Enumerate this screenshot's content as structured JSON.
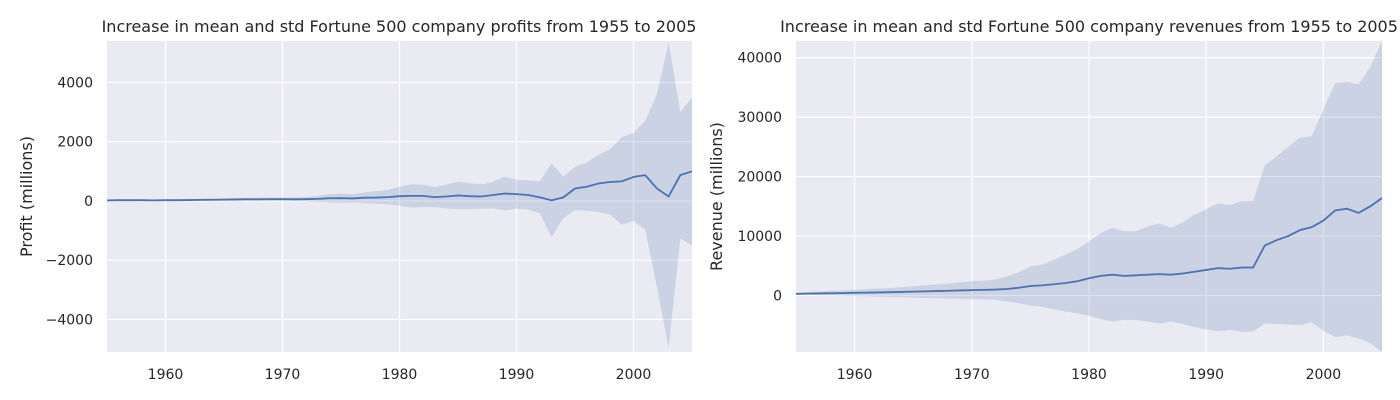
{
  "colors": {
    "panel_background": "#eaeaf2",
    "series": "#4c72b0",
    "gridline": "#ffffff",
    "text": "#262626"
  },
  "chart_data": [
    {
      "type": "line",
      "title": "Increase in mean and std Fortune 500 company profits from 1955 to 2005",
      "xlabel": "",
      "ylabel": "Profit (millions)",
      "xlim": [
        1955,
        2005
      ],
      "ylim": [
        -5100,
        5400
      ],
      "xticks": [
        1960,
        1970,
        1980,
        1990,
        2000
      ],
      "xtick_labels": [
        "1960",
        "1970",
        "1980",
        "1990",
        "2000"
      ],
      "yticks": [
        -4000,
        -2000,
        0,
        2000,
        4000
      ],
      "ytick_labels": [
        "−4000",
        "−2000",
        "0",
        "2000",
        "4000"
      ],
      "grid": true,
      "series": [
        {
          "x": [
            1955,
            1956,
            1957,
            1958,
            1959,
            1960,
            1961,
            1962,
            1963,
            1964,
            1965,
            1966,
            1967,
            1968,
            1969,
            1970,
            1971,
            1972,
            1973,
            1974,
            1975,
            1976,
            1977,
            1978,
            1979,
            1980,
            1981,
            1982,
            1983,
            1984,
            1985,
            1986,
            1987,
            1988,
            1989,
            1990,
            1991,
            1992,
            1993,
            1994,
            1995,
            1996,
            1997,
            1998,
            1999,
            2000,
            2001,
            2002,
            2003,
            2004,
            2005
          ],
          "mean": [
            20,
            25,
            25,
            25,
            20,
            25,
            25,
            30,
            35,
            40,
            45,
            50,
            55,
            55,
            60,
            60,
            55,
            60,
            70,
            90,
            95,
            85,
            110,
            115,
            130,
            160,
            170,
            170,
            130,
            150,
            185,
            160,
            150,
            200,
            250,
            230,
            200,
            120,
            20,
            120,
            420,
            480,
            590,
            640,
            660,
            810,
            870,
            420,
            150,
            870,
            1000
          ],
          "upper": [
            50,
            55,
            55,
            50,
            45,
            55,
            55,
            60,
            70,
            80,
            90,
            100,
            105,
            105,
            115,
            115,
            110,
            130,
            170,
            230,
            250,
            220,
            290,
            330,
            370,
            480,
            560,
            550,
            470,
            550,
            650,
            600,
            560,
            650,
            820,
            720,
            690,
            660,
            1270,
            820,
            1150,
            1300,
            1550,
            1750,
            2150,
            2300,
            2700,
            3600,
            5350,
            3000,
            3500
          ],
          "lower": [
            -10,
            -5,
            -5,
            0,
            -5,
            -5,
            -5,
            0,
            0,
            0,
            0,
            0,
            5,
            5,
            5,
            5,
            0,
            -10,
            -30,
            -50,
            -60,
            -50,
            -70,
            -100,
            -110,
            -160,
            -220,
            -210,
            -210,
            -250,
            -280,
            -280,
            -260,
            -250,
            -320,
            -260,
            -290,
            -420,
            -1230,
            -580,
            -310,
            -330,
            -370,
            -460,
            -800,
            -680,
            -970,
            -2900,
            -4960,
            -1270,
            -1500
          ]
        }
      ]
    },
    {
      "type": "line",
      "title": "Increase in mean and std Fortune 500 company revenues from 1955 to 2005",
      "xlabel": "",
      "ylabel": "Revenue (millions)",
      "xlim": [
        1955,
        2005
      ],
      "ylim": [
        -9500,
        42800
      ],
      "xticks": [
        1960,
        1970,
        1980,
        1990,
        2000
      ],
      "xtick_labels": [
        "1960",
        "1970",
        "1980",
        "1990",
        "2000"
      ],
      "yticks": [
        0,
        10000,
        20000,
        30000,
        40000
      ],
      "ytick_labels": [
        "0",
        "10000",
        "20000",
        "30000",
        "40000"
      ],
      "grid": true,
      "series": [
        {
          "x": [
            1955,
            1956,
            1957,
            1958,
            1959,
            1960,
            1961,
            1962,
            1963,
            1964,
            1965,
            1966,
            1967,
            1968,
            1969,
            1970,
            1971,
            1972,
            1973,
            1974,
            1975,
            1976,
            1977,
            1978,
            1979,
            1980,
            1981,
            1982,
            1983,
            1984,
            1985,
            1986,
            1987,
            1988,
            1989,
            1990,
            1991,
            1992,
            1993,
            1994,
            1995,
            1996,
            1997,
            1998,
            1999,
            2000,
            2001,
            2002,
            2003,
            2004,
            2005
          ],
          "mean": [
            280,
            320,
            350,
            380,
            400,
            450,
            480,
            520,
            560,
            600,
            650,
            700,
            750,
            800,
            850,
            900,
            950,
            1000,
            1100,
            1300,
            1600,
            1700,
            1900,
            2100,
            2400,
            2900,
            3300,
            3500,
            3300,
            3400,
            3500,
            3600,
            3500,
            3700,
            4000,
            4300,
            4600,
            4500,
            4700,
            4700,
            8400,
            9300,
            10000,
            11000,
            11500,
            12600,
            14300,
            14600,
            13900,
            15000,
            16400
          ],
          "upper": [
            500,
            600,
            700,
            800,
            850,
            950,
            1050,
            1150,
            1250,
            1400,
            1550,
            1700,
            1850,
            2000,
            2200,
            2400,
            2500,
            2700,
            3200,
            3900,
            4900,
            5200,
            6000,
            6900,
            7800,
            9100,
            10500,
            11400,
            10800,
            10800,
            11600,
            12100,
            11400,
            12300,
            13600,
            14500,
            15500,
            15200,
            15800,
            15900,
            21900,
            23400,
            25000,
            26500,
            26800,
            31300,
            35700,
            35900,
            35500,
            38400,
            42800
          ],
          "lower": [
            100,
            100,
            50,
            0,
            -50,
            -100,
            -150,
            -200,
            -250,
            -300,
            -350,
            -400,
            -450,
            -500,
            -550,
            -600,
            -650,
            -700,
            -1000,
            -1300,
            -1700,
            -1900,
            -2300,
            -2700,
            -3000,
            -3400,
            -4000,
            -4400,
            -4100,
            -4100,
            -4400,
            -4700,
            -4400,
            -4800,
            -5300,
            -5700,
            -6000,
            -5800,
            -6100,
            -6100,
            -4700,
            -4800,
            -4900,
            -5000,
            -4500,
            -5900,
            -7000,
            -6700,
            -7200,
            -8000,
            -9500
          ]
        }
      ]
    }
  ]
}
